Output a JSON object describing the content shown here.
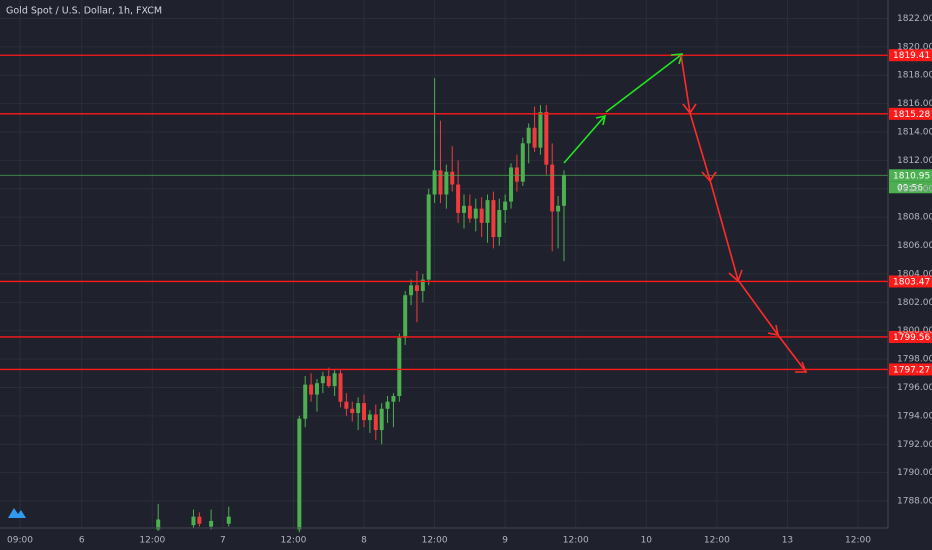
{
  "chart_data": {
    "type": "candlestick",
    "title": "Gold Spot / U.S. Dollar, 1h, FXCM",
    "x": [
      13,
      19,
      20,
      22,
      25,
      37,
      38,
      39,
      40,
      41,
      42,
      43,
      44,
      45,
      46,
      47,
      48,
      49,
      50,
      51,
      52,
      53,
      54,
      55,
      56,
      57,
      58,
      59,
      60,
      61,
      62,
      63,
      64,
      65,
      66,
      67,
      68,
      69,
      70,
      71,
      72,
      73,
      74,
      75,
      76,
      77,
      78,
      79,
      80,
      81,
      82
    ],
    "open": [
      1786.0,
      1786.3,
      1786.9,
      1786.2,
      1786.4,
      1786.0,
      1793.8,
      1796.2,
      1795.5,
      1796.3,
      1796.8,
      1796.1,
      1797.0,
      1795.0,
      1794.5,
      1794.2,
      1794.9,
      1793.7,
      1794.1,
      1793.0,
      1794.5,
      1795.0,
      1795.4,
      1799.5,
      1802.5,
      1803.2,
      1802.8,
      1803.6,
      1809.6,
      1811.3,
      1809.6,
      1811.2,
      1810.3,
      1808.3,
      1808.8,
      1807.9,
      1808.6,
      1807.6,
      1809.2,
      1806.6,
      1808.5,
      1809.1,
      1811.5,
      1810.5,
      1813.2,
      1814.3,
      1812.9,
      1815.4,
      1811.7,
      1808.4,
      1808.8
    ],
    "high": [
      1787.8,
      1787.4,
      1787.2,
      1787.4,
      1787.6,
      1794.0,
      1796.8,
      1797.0,
      1796.6,
      1797.1,
      1797.4,
      1797.3,
      1797.3,
      1795.6,
      1795.0,
      1795.3,
      1795.5,
      1794.4,
      1794.8,
      1794.9,
      1795.4,
      1795.6,
      1799.8,
      1802.8,
      1803.6,
      1804.2,
      1804.0,
      1810.0,
      1817.8,
      1814.8,
      1811.7,
      1813.0,
      1812.0,
      1809.6,
      1809.6,
      1809.3,
      1809.4,
      1809.6,
      1809.8,
      1809.3,
      1809.6,
      1811.8,
      1812.4,
      1813.6,
      1814.6,
      1815.8,
      1815.9,
      1815.9,
      1813.2,
      1809.5,
      1811.3
    ],
    "low": [
      1785.9,
      1786.1,
      1786.2,
      1786.0,
      1786.2,
      1785.8,
      1793.2,
      1795.0,
      1794.3,
      1795.6,
      1796.0,
      1795.4,
      1794.6,
      1794.0,
      1793.6,
      1793.0,
      1793.2,
      1792.8,
      1792.3,
      1792.0,
      1793.5,
      1793.2,
      1795.0,
      1799.0,
      1801.8,
      1800.6,
      1802.0,
      1803.2,
      1809.0,
      1809.0,
      1808.6,
      1809.8,
      1807.6,
      1807.2,
      1807.6,
      1807.0,
      1806.6,
      1806.2,
      1805.8,
      1806.0,
      1807.6,
      1808.6,
      1809.8,
      1810.2,
      1811.8,
      1812.6,
      1812.4,
      1811.0,
      1805.6,
      1805.8,
      1804.9
    ],
    "close": [
      1786.7,
      1786.9,
      1786.4,
      1786.6,
      1786.9,
      1793.8,
      1796.2,
      1795.5,
      1796.3,
      1796.8,
      1796.1,
      1797.0,
      1795.0,
      1794.5,
      1794.2,
      1794.9,
      1793.7,
      1794.1,
      1793.0,
      1794.5,
      1795.0,
      1795.4,
      1799.5,
      1802.5,
      1803.2,
      1802.8,
      1803.6,
      1809.6,
      1811.3,
      1809.6,
      1811.2,
      1810.3,
      1808.3,
      1808.8,
      1807.9,
      1808.6,
      1807.6,
      1809.2,
      1806.6,
      1808.5,
      1809.1,
      1811.5,
      1810.5,
      1813.2,
      1814.3,
      1812.9,
      1815.4,
      1811.7,
      1808.4,
      1808.8,
      1810.95
    ],
    "up_color": "#4caf50",
    "down_color": "#ef3b3b",
    "xlim": [
      -13.9,
      137.1
    ],
    "xticks": [
      {
        "value": -10.5,
        "label": "09:00"
      },
      {
        "value": 0,
        "label": "6"
      },
      {
        "value": 12,
        "label": "12:00"
      },
      {
        "value": 24,
        "label": "7"
      },
      {
        "value": 36,
        "label": "12:00"
      },
      {
        "value": 48,
        "label": "8"
      },
      {
        "value": 60,
        "label": "12:00"
      },
      {
        "value": 72,
        "label": "9"
      },
      {
        "value": 84,
        "label": "12:00"
      },
      {
        "value": 96,
        "label": "10"
      },
      {
        "value": 108,
        "label": "12:00"
      },
      {
        "value": 120,
        "label": "13"
      },
      {
        "value": 132,
        "label": "12:00"
      }
    ],
    "ylim": [
      1786.1,
      1823.3
    ],
    "yticks": [
      {
        "value": 1788,
        "label": "1788.00"
      },
      {
        "value": 1790,
        "label": "1790.00"
      },
      {
        "value": 1792,
        "label": "1792.00"
      },
      {
        "value": 1794,
        "label": "1794.00"
      },
      {
        "value": 1796,
        "label": "1796.00"
      },
      {
        "value": 1798,
        "label": "1798.00"
      },
      {
        "value": 1800,
        "label": "1800.00"
      },
      {
        "value": 1802,
        "label": "1802.00"
      },
      {
        "value": 1804,
        "label": "1804.00"
      },
      {
        "value": 1806,
        "label": "1806.00"
      },
      {
        "value": 1808,
        "label": "1808.00"
      },
      {
        "value": 1810,
        "label": "1810.00"
      },
      {
        "value": 1812,
        "label": "1812.00"
      },
      {
        "value": 1814,
        "label": "1814.00"
      },
      {
        "value": 1816,
        "label": "1816.00"
      },
      {
        "value": 1818,
        "label": "1818.00"
      },
      {
        "value": 1820,
        "label": "1820.00"
      },
      {
        "value": 1822,
        "label": "1822.00"
      }
    ],
    "grid": true,
    "levels": [
      1819.41,
      1815.28,
      1803.47,
      1799.56,
      1797.27
    ],
    "level_color": "#ff1a1a",
    "last_price": 1810.95,
    "countdown": "09:56"
  }
}
